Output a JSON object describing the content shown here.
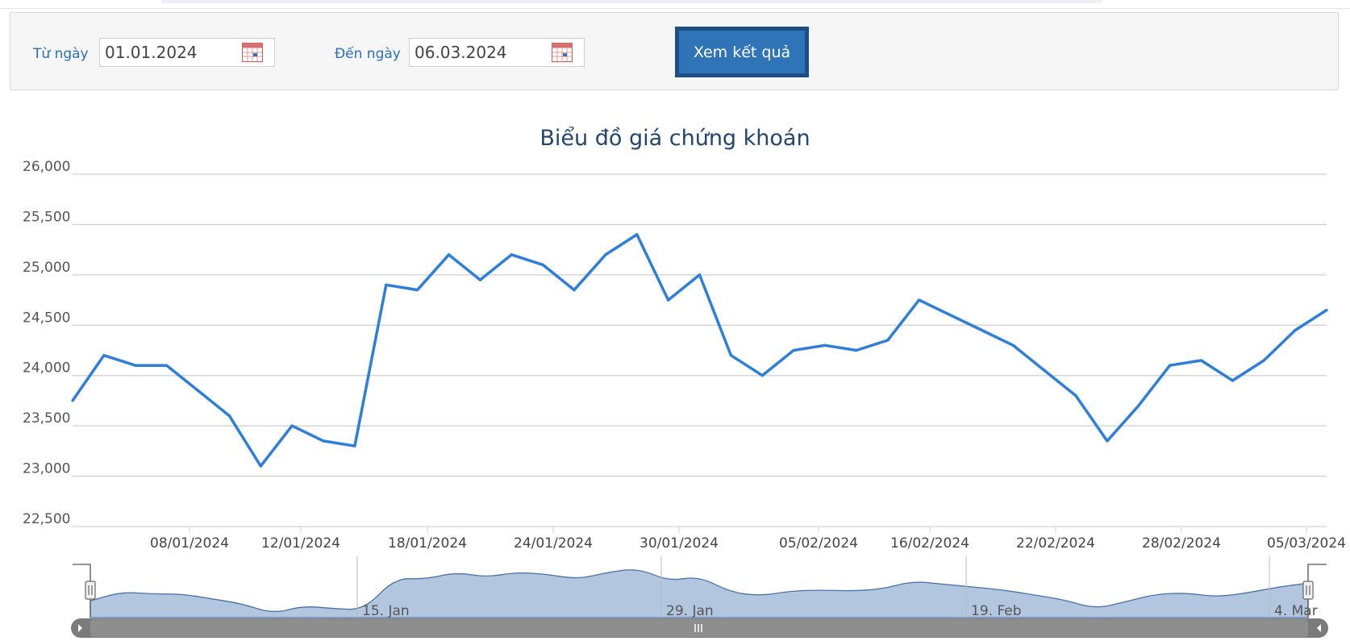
{
  "filter": {
    "from_label": "Từ ngày",
    "from_value": "01.01.2024",
    "to_label": "Đến ngày",
    "to_value": "06.03.2024",
    "submit_label": "Xem kết quả"
  },
  "colors": {
    "line": "#2f7ed8",
    "accent": "#2a6fb8",
    "button": "#2f74b7",
    "navigator_fill": "#b3c6df",
    "navigator_line": "#4a72a6"
  },
  "chart_data": {
    "type": "line",
    "title": "Biểu đồ giá chứng khoán",
    "xlabel": "",
    "ylabel": "",
    "ylim": [
      22500,
      26000
    ],
    "yticks": [
      "26,000",
      "25,500",
      "25,000",
      "24,500",
      "24,000",
      "23,500",
      "23,000",
      "22,500"
    ],
    "grid": true,
    "xticks": [
      "08/01/2024",
      "12/01/2024",
      "18/01/2024",
      "24/01/2024",
      "30/01/2024",
      "05/02/2024",
      "16/02/2024",
      "22/02/2024",
      "28/02/2024",
      "05/03/2024"
    ],
    "series": [
      {
        "values": [
          23750,
          24200,
          24100,
          24100,
          23850,
          23600,
          23100,
          23500,
          23350,
          23300,
          24900,
          24850,
          25200,
          24950,
          25200,
          25100,
          24850,
          25200,
          25400,
          24750,
          25000,
          24200,
          24000,
          24250,
          24300,
          24250,
          24350,
          24750,
          24600,
          24450,
          24300,
          24050,
          23800,
          23350,
          23700,
          24100,
          24150,
          23950,
          24150,
          24450,
          24650
        ]
      }
    ],
    "navigator": {
      "ticks": [
        "15. Jan",
        "29. Jan",
        "19. Feb",
        "4. Mar"
      ]
    }
  }
}
